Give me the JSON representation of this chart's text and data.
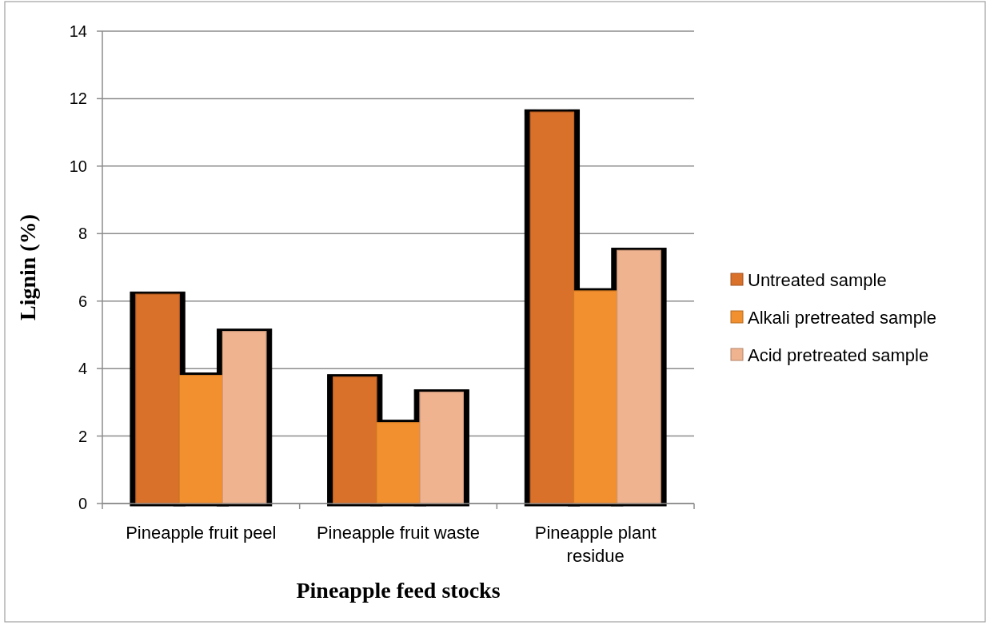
{
  "chart_data": {
    "type": "bar",
    "xlabel": "Pineapple feed stocks",
    "ylabel": "Lignin (%)",
    "categories": [
      "Pineapple fruit peel",
      "Pineapple fruit waste",
      "Pineapple plant residue"
    ],
    "series": [
      {
        "name": "Untreated sample",
        "color": "#d9712a",
        "values": [
          6.2,
          3.75,
          11.6
        ]
      },
      {
        "name": "Alkali pretreated sample",
        "color": "#f28f2e",
        "values": [
          3.8,
          2.4,
          6.3
        ]
      },
      {
        "name": "Acid pretreated sample",
        "color": "#efb390",
        "values": [
          5.1,
          3.3,
          7.5
        ]
      }
    ],
    "ylim": [
      0,
      14
    ],
    "yticks": [
      0,
      2,
      4,
      6,
      8,
      10,
      12,
      14
    ],
    "grid": "y",
    "legend": "right"
  }
}
